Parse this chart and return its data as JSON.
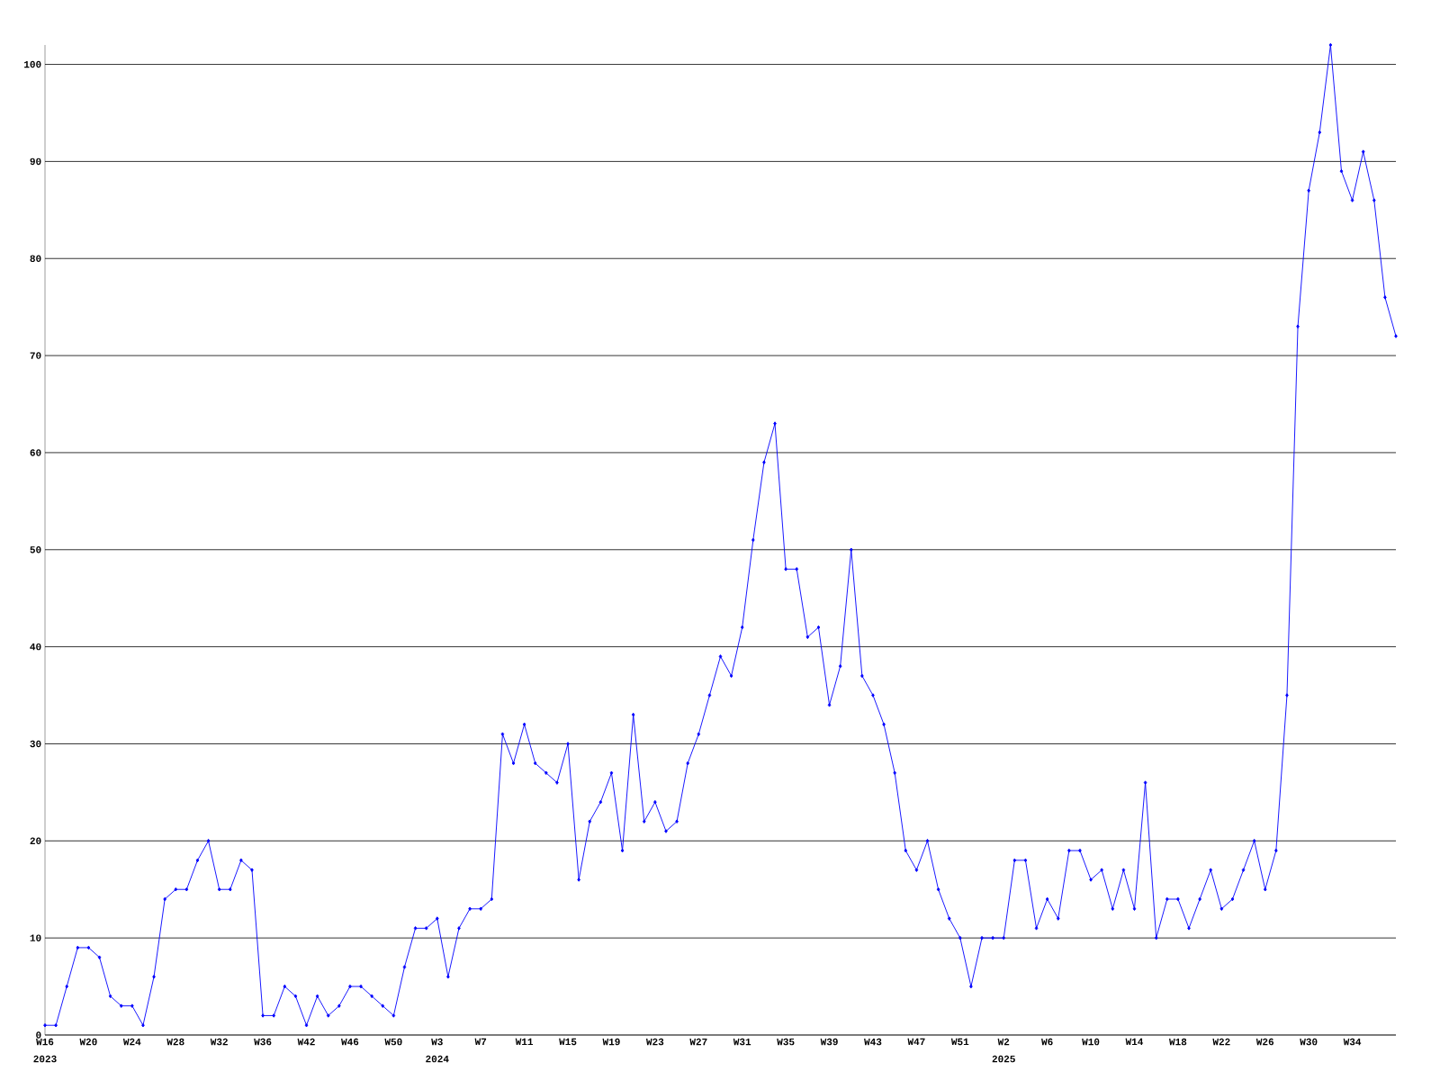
{
  "chart_data": {
    "type": "line",
    "categories": [
      "W16",
      null,
      null,
      null,
      "W20",
      null,
      null,
      null,
      "W24",
      null,
      null,
      null,
      "W28",
      null,
      null,
      null,
      "W32",
      null,
      null,
      null,
      "W36",
      null,
      null,
      null,
      "W42",
      null,
      null,
      null,
      "W46",
      null,
      null,
      null,
      "W50",
      null,
      null,
      null,
      "W3",
      null,
      null,
      null,
      "W7",
      null,
      null,
      null,
      "W11",
      null,
      null,
      null,
      "W15",
      null,
      null,
      null,
      "W19",
      null,
      null,
      null,
      "W23",
      null,
      null,
      null,
      "W27",
      null,
      null,
      null,
      "W31",
      null,
      null,
      null,
      "W35",
      null,
      null,
      null,
      "W39",
      null,
      null,
      null,
      "W43",
      null,
      null,
      null,
      "W47",
      null,
      null,
      null,
      "W51",
      null,
      null,
      null,
      "W2",
      null,
      null,
      null,
      "W6",
      null,
      null,
      null,
      "W10",
      null,
      null,
      null,
      "W14",
      null,
      null,
      null,
      "W18",
      null,
      null,
      null,
      "W22",
      null,
      null,
      null,
      "W26",
      null,
      null,
      null,
      "W30",
      null,
      null,
      null,
      "W34",
      null,
      null,
      null,
      null
    ],
    "series": [
      {
        "color": "#0000ff",
        "values": [
          1,
          1,
          5,
          9,
          9,
          8,
          4,
          3,
          3,
          1,
          6,
          14,
          15,
          15,
          18,
          20,
          15,
          15,
          18,
          17,
          2,
          2,
          5,
          4,
          1,
          4,
          2,
          3,
          5,
          5,
          4,
          3,
          2,
          7,
          11,
          11,
          12,
          6,
          11,
          13,
          13,
          14,
          31,
          28,
          32,
          28,
          27,
          26,
          30,
          16,
          22,
          24,
          27,
          19,
          33,
          22,
          24,
          21,
          22,
          28,
          31,
          35,
          39,
          37,
          42,
          51,
          59,
          63,
          48,
          48,
          41,
          42,
          34,
          38,
          50,
          37,
          35,
          32,
          27,
          19,
          17,
          20,
          15,
          12,
          10,
          5,
          10,
          10,
          10,
          18,
          18,
          11,
          14,
          12,
          19,
          19,
          16,
          17,
          13,
          17,
          13,
          26,
          10,
          14,
          14,
          11,
          14,
          17,
          13,
          14,
          17,
          20,
          15,
          19,
          35,
          73,
          87,
          93,
          102,
          89,
          86,
          91,
          86,
          76,
          72
        ]
      }
    ],
    "ylim": [
      0,
      102
    ],
    "yticks": [
      0,
      10,
      20,
      30,
      40,
      50,
      60,
      70,
      80,
      90,
      100
    ],
    "grid": "y",
    "marker": "diamond",
    "line_style": "solid",
    "annotations": [
      "2023",
      "2024",
      "2025"
    ]
  }
}
